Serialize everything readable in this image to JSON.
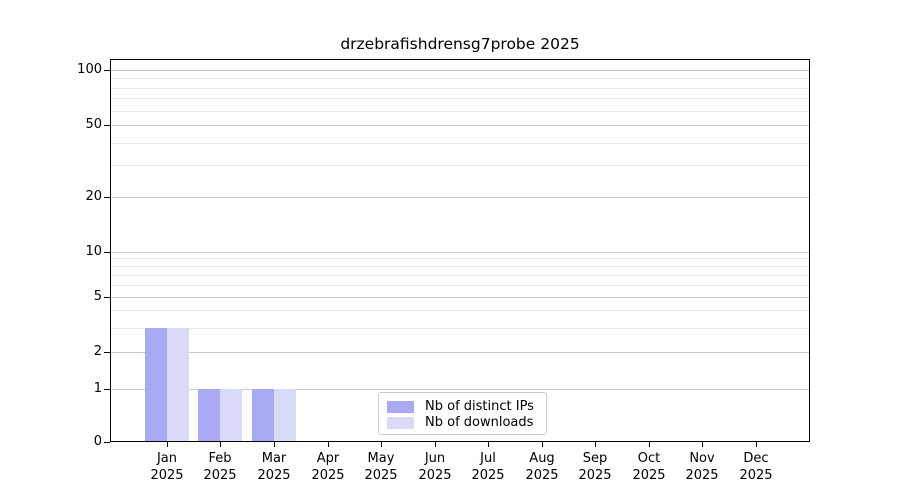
{
  "chart_data": {
    "type": "bar",
    "title": "drzebrafishdrensg7probe 2025",
    "categories": [
      "Jan 2025",
      "Feb 2025",
      "Mar 2025",
      "Apr 2025",
      "May 2025",
      "Jun 2025",
      "Jul 2025",
      "Aug 2025",
      "Sep 2025",
      "Oct 2025",
      "Nov 2025",
      "Dec 2025"
    ],
    "series": [
      {
        "name": "Nb of distinct IPs",
        "color": "#a9a9f4",
        "values": [
          3,
          1,
          1,
          0,
          0,
          0,
          0,
          0,
          0,
          0,
          0,
          0
        ]
      },
      {
        "name": "Nb of downloads",
        "color": "#d9d9f8",
        "values": [
          3,
          1,
          1,
          0,
          0,
          0,
          0,
          0,
          0,
          0,
          0,
          0
        ]
      }
    ],
    "xlabel": "",
    "ylabel": "",
    "y_scale": "symlog",
    "y_ticks": [
      0,
      1,
      2,
      5,
      10,
      20,
      50,
      100
    ],
    "y_minor_gridlines": [
      3,
      4,
      6,
      7,
      8,
      9,
      30,
      40,
      60,
      70,
      80,
      90
    ],
    "ylim": [
      0,
      115
    ],
    "grid": "horizontal major+minor",
    "legend_position": "bottom-center-inside",
    "colors": {
      "major_gridline": "#cccccc",
      "minor_gridline": "#eaeaea",
      "axis": "#000000",
      "background": "#ffffff"
    }
  }
}
